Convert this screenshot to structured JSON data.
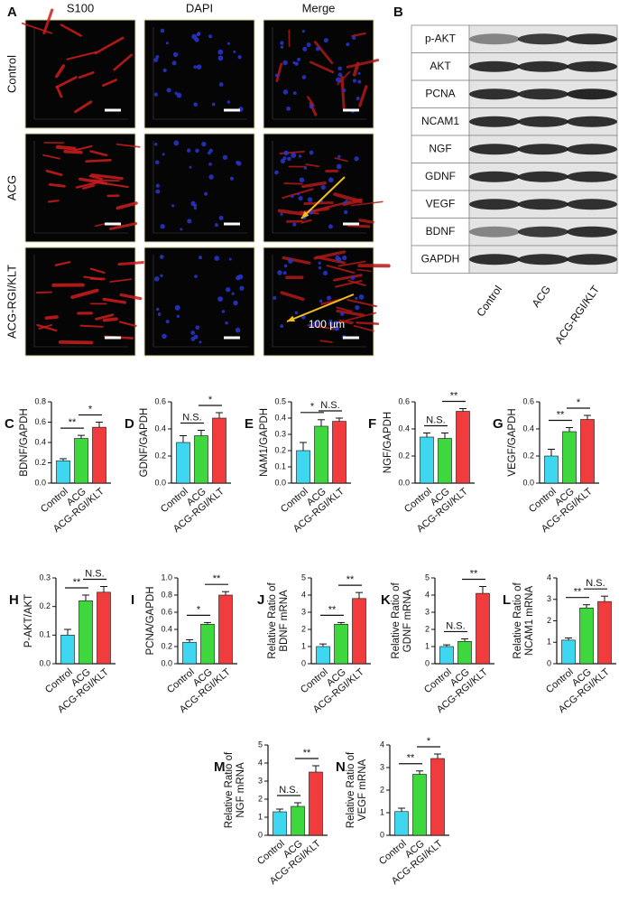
{
  "panel_a": {
    "label": "A",
    "columns": [
      "S100",
      "DAPI",
      "Merge"
    ],
    "rows": [
      "Control",
      "ACG",
      "ACG-RGI/KLT"
    ],
    "scale_bar": "100 µm"
  },
  "panel_b": {
    "label": "B",
    "proteins": [
      "p-AKT",
      "AKT",
      "PCNA",
      "NCAM1",
      "NGF",
      "GDNF",
      "VEGF",
      "BDNF",
      "GAPDH"
    ],
    "lanes": [
      "Control",
      "ACG",
      "ACG-RGI/KLT"
    ]
  },
  "chart_data": [
    {
      "type": "bar",
      "panel": "C",
      "ylabel": [
        "BDNF/GAPDH"
      ],
      "categories": [
        "Control",
        "ACG",
        "ACG-RGI/KLT"
      ],
      "values": [
        0.22,
        0.44,
        0.55
      ],
      "errors": [
        0.02,
        0.03,
        0.05
      ],
      "colors": [
        "#3fd6f0",
        "#3ed83e",
        "#f03c3c"
      ],
      "ylim": [
        0,
        0.8
      ],
      "yticks": [
        {
          "value": 0,
          "label": "0.0"
        },
        0.2,
        0.4,
        0.6,
        0.8
      ],
      "significance": [
        "**",
        "*"
      ]
    },
    {
      "type": "bar",
      "panel": "D",
      "ylabel": [
        "GDNF/GAPDH"
      ],
      "categories": [
        "Control",
        "ACG",
        "ACG-RGI/KLT"
      ],
      "values": [
        0.3,
        0.35,
        0.48
      ],
      "errors": [
        0.05,
        0.04,
        0.04
      ],
      "colors": [
        "#3fd6f0",
        "#3ed83e",
        "#f03c3c"
      ],
      "ylim": [
        0,
        0.6
      ],
      "yticks": [
        {
          "value": 0,
          "label": "0.0"
        },
        0.2,
        0.4,
        0.6
      ],
      "significance": [
        "N.S.",
        "*"
      ]
    },
    {
      "type": "bar",
      "panel": "E",
      "ylabel": [
        "NAM1/GAPDH"
      ],
      "categories": [
        "Control",
        "ACG",
        "ACG-RGI/KLT"
      ],
      "values": [
        0.2,
        0.35,
        0.38
      ],
      "errors": [
        0.05,
        0.04,
        0.02
      ],
      "colors": [
        "#3fd6f0",
        "#3ed83e",
        "#f03c3c"
      ],
      "ylim": [
        0,
        0.5
      ],
      "yticks": [
        {
          "value": 0,
          "label": "0.0"
        },
        0.1,
        0.2,
        0.3,
        0.4,
        0.5
      ],
      "significance": [
        "*",
        "N.S."
      ]
    },
    {
      "type": "bar",
      "panel": "F",
      "ylabel": [
        "NGF/GAPDH"
      ],
      "categories": [
        "Control",
        "ACG",
        "ACG-RGI/KLT"
      ],
      "values": [
        0.34,
        0.33,
        0.53
      ],
      "errors": [
        0.03,
        0.04,
        0.02
      ],
      "colors": [
        "#3fd6f0",
        "#3ed83e",
        "#f03c3c"
      ],
      "ylim": [
        0,
        0.6
      ],
      "yticks": [
        {
          "value": 0,
          "label": "0.0"
        },
        0.2,
        0.4,
        0.6
      ],
      "significance": [
        "N.S.",
        "**"
      ]
    },
    {
      "type": "bar",
      "panel": "G",
      "ylabel": [
        "VEGF/GAPDH"
      ],
      "categories": [
        "Control",
        "ACG",
        "ACG-RGI/KLT"
      ],
      "values": [
        0.2,
        0.38,
        0.47
      ],
      "errors": [
        0.05,
        0.03,
        0.03
      ],
      "colors": [
        "#3fd6f0",
        "#3ed83e",
        "#f03c3c"
      ],
      "ylim": [
        0,
        0.6
      ],
      "yticks": [
        {
          "value": 0,
          "label": "0.0"
        },
        0.2,
        0.4,
        0.6
      ],
      "significance": [
        "**",
        "*"
      ]
    },
    {
      "type": "bar",
      "panel": "H",
      "ylabel": [
        "P-AKT/AKT"
      ],
      "categories": [
        "Control",
        "ACG",
        "ACG-RGI/KLT"
      ],
      "values": [
        0.1,
        0.22,
        0.25
      ],
      "errors": [
        0.02,
        0.02,
        0.02
      ],
      "colors": [
        "#3fd6f0",
        "#3ed83e",
        "#f03c3c"
      ],
      "ylim": [
        0,
        0.3
      ],
      "yticks": [
        {
          "value": 0,
          "label": "0.0"
        },
        0.1,
        0.2,
        0.3
      ],
      "significance": [
        "**",
        "N.S."
      ]
    },
    {
      "type": "bar",
      "panel": "I",
      "ylabel": [
        "PCNA/GAPDH"
      ],
      "categories": [
        "Control",
        "ACG",
        "ACG-RGI/KLT"
      ],
      "values": [
        0.25,
        0.46,
        0.8
      ],
      "errors": [
        0.03,
        0.02,
        0.04
      ],
      "colors": [
        "#3fd6f0",
        "#3ed83e",
        "#f03c3c"
      ],
      "ylim": [
        0,
        1.0
      ],
      "yticks": [
        {
          "value": 0,
          "label": "0.0"
        },
        0.2,
        0.4,
        0.6,
        0.8,
        {
          "value": 1,
          "label": "1.0"
        }
      ],
      "significance": [
        "*",
        "**"
      ]
    },
    {
      "type": "bar",
      "panel": "J",
      "ylabel": [
        "Relative Ratio of",
        "BDNF mRNA"
      ],
      "categories": [
        "Control",
        "ACG",
        "ACG-RGI/KLT"
      ],
      "values": [
        1.0,
        2.3,
        3.8
      ],
      "errors": [
        0.15,
        0.1,
        0.35
      ],
      "colors": [
        "#3fd6f0",
        "#3ed83e",
        "#f03c3c"
      ],
      "ylim": [
        0,
        5
      ],
      "yticks": [
        0,
        1,
        2,
        3,
        4,
        5
      ],
      "significance": [
        "**",
        "**"
      ]
    },
    {
      "type": "bar",
      "panel": "K",
      "ylabel": [
        "Relative Ratio of",
        "GDNF mRNA"
      ],
      "categories": [
        "Control",
        "ACG",
        "ACG-RGI/KLT"
      ],
      "values": [
        1.0,
        1.3,
        4.1
      ],
      "errors": [
        0.1,
        0.15,
        0.4
      ],
      "colors": [
        "#3fd6f0",
        "#3ed83e",
        "#f03c3c"
      ],
      "ylim": [
        0,
        5
      ],
      "yticks": [
        0,
        1,
        2,
        3,
        4,
        5
      ],
      "significance": [
        "N.S.",
        "**"
      ]
    },
    {
      "type": "bar",
      "panel": "L",
      "ylabel": [
        "Relative Ratio of",
        "NCAM1 mRNA"
      ],
      "categories": [
        "Control",
        "ACG",
        "ACG-RGI/KLT"
      ],
      "values": [
        1.1,
        2.6,
        2.9
      ],
      "errors": [
        0.1,
        0.15,
        0.25
      ],
      "colors": [
        "#3fd6f0",
        "#3ed83e",
        "#f03c3c"
      ],
      "ylim": [
        0,
        4
      ],
      "yticks": [
        0,
        1,
        2,
        3,
        4
      ],
      "significance": [
        "**",
        "N.S."
      ]
    },
    {
      "type": "bar",
      "panel": "M",
      "ylabel": [
        "Relative Ratio of",
        "NGF mRNA"
      ],
      "categories": [
        "Control",
        "ACG",
        "ACG-RGI/KLT"
      ],
      "values": [
        1.3,
        1.6,
        3.5
      ],
      "errors": [
        0.15,
        0.2,
        0.35
      ],
      "colors": [
        "#3fd6f0",
        "#3ed83e",
        "#f03c3c"
      ],
      "ylim": [
        0,
        5
      ],
      "yticks": [
        0,
        1,
        2,
        3,
        4,
        5
      ],
      "significance": [
        "N.S.",
        "**"
      ]
    },
    {
      "type": "bar",
      "panel": "N",
      "ylabel": [
        "Relative Ratio of",
        "VEGF mRNA"
      ],
      "categories": [
        "Control",
        "ACG",
        "ACG-RGI/KLT"
      ],
      "values": [
        1.05,
        2.7,
        3.4
      ],
      "errors": [
        0.15,
        0.15,
        0.2
      ],
      "colors": [
        "#3fd6f0",
        "#3ed83e",
        "#f03c3c"
      ],
      "ylim": [
        0,
        4
      ],
      "yticks": [
        0,
        1,
        2,
        3,
        4
      ],
      "significance": [
        "**",
        "*"
      ]
    }
  ]
}
